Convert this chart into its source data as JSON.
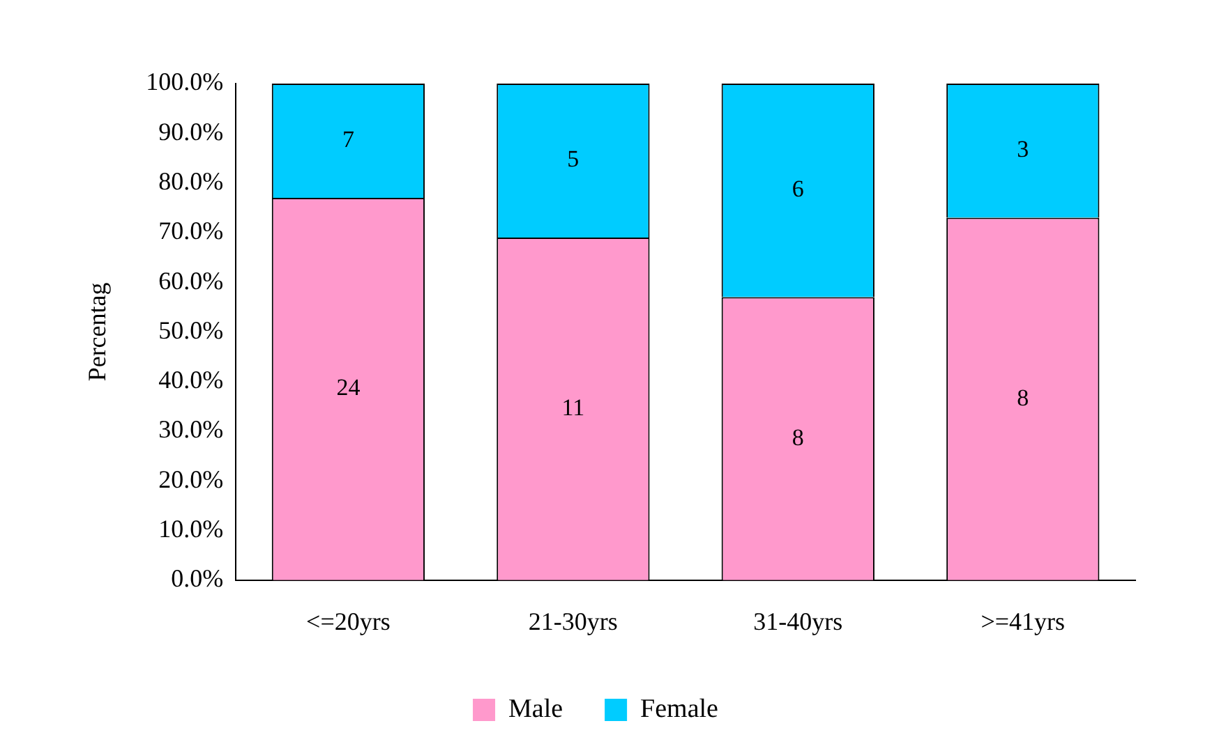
{
  "chart_data": {
    "type": "bar",
    "stacked": true,
    "ylabel": "Percentag",
    "categories": [
      "<=20yrs",
      "21-30yrs",
      "31-40yrs",
      ">=41yrs"
    ],
    "series": [
      {
        "name": "Male",
        "color": "#ff99cc",
        "values": [
          77,
          69,
          57,
          73
        ]
      },
      {
        "name": "Female",
        "color": "#00ccff",
        "values": [
          23,
          31,
          43,
          27
        ]
      }
    ],
    "annotations": [
      "24",
      "11",
      "8",
      "8",
      "7",
      "5",
      "6",
      "3"
    ],
    "ylim": [
      0,
      100
    ],
    "yticks": [
      {
        "value": 0,
        "label": "0.0%"
      },
      {
        "value": 10,
        "label": "10.0%"
      },
      {
        "value": 20,
        "label": "20.0%"
      },
      {
        "value": 30,
        "label": "30.0%"
      },
      {
        "value": 40,
        "label": "40.0%"
      },
      {
        "value": 50,
        "label": "50.0%"
      },
      {
        "value": 60,
        "label": "60.0%"
      },
      {
        "value": 70,
        "label": "70.0%"
      },
      {
        "value": 80,
        "label": "80.0%"
      },
      {
        "value": 90,
        "label": "90.0%"
      },
      {
        "value": 100,
        "label": "100.0%"
      }
    ],
    "legend": "bottom"
  }
}
